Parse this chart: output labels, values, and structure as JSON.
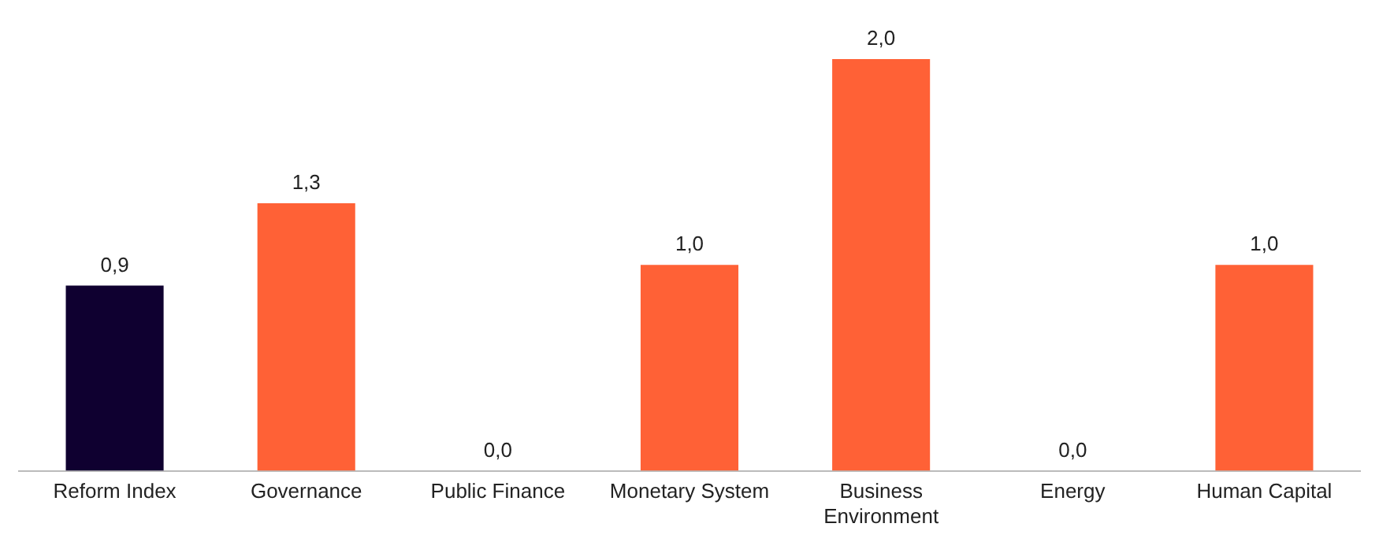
{
  "chart_data": {
    "type": "bar",
    "categories": [
      "Reform Index",
      "Governance",
      "Public Finance",
      "Monetary System",
      "Business Environment",
      "Energy",
      "Human Capital"
    ],
    "values": [
      0.9,
      1.3,
      0.0,
      1.0,
      2.0,
      0.0,
      1.0
    ],
    "colors": [
      "#0f0030",
      "#ff6136",
      "#ff6136",
      "#ff6136",
      "#ff6136",
      "#ff6136",
      "#ff6136"
    ],
    "value_labels": [
      "0,9",
      "1,3",
      "0,0",
      "1,0",
      "2,0",
      "0,0",
      "1,0"
    ],
    "grid": false,
    "legend": false
  }
}
